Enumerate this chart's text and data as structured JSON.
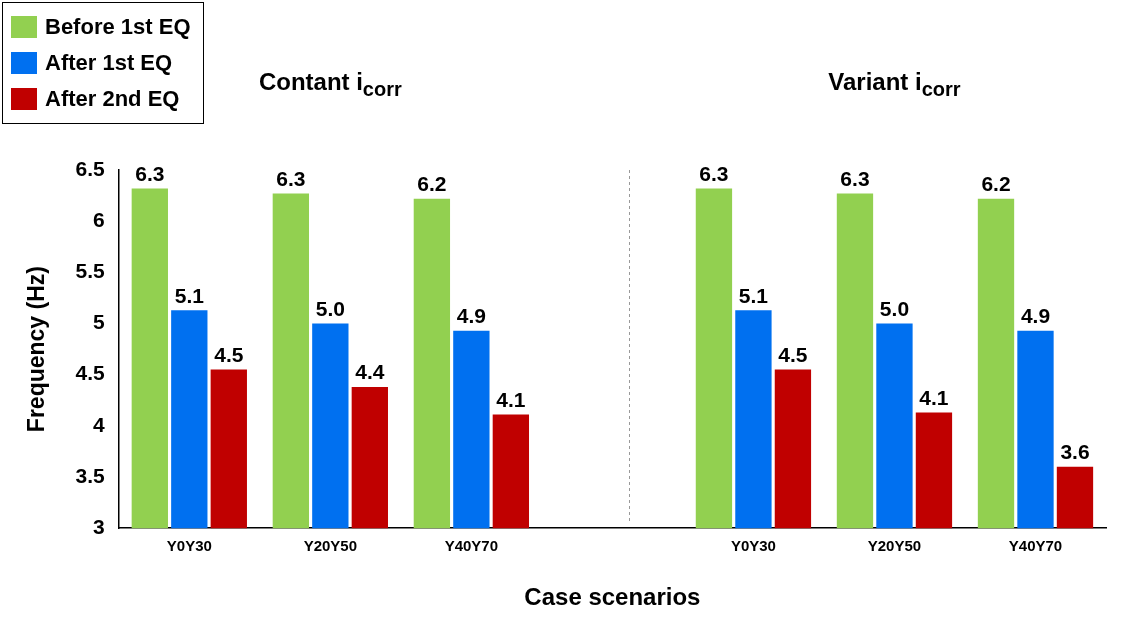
{
  "chart_data": {
    "type": "bar",
    "xlabel": "Case scenarios",
    "ylabel": "Frequency (Hz)",
    "annotations": [
      "Contant i$_{corr}$",
      "Variant i$_{corr}$"
    ],
    "categories": [
      "Y0Y30",
      "Y20Y50",
      "Y40Y70",
      null,
      "Y0Y30",
      "Y20Y50",
      "Y40Y70"
    ],
    "series": [
      {
        "name": "Before 1st EQ",
        "color": "#92d050",
        "values": [
          6.32,
          6.27,
          6.22,
          null,
          6.32,
          6.27,
          6.22
        ],
        "value_labels": [
          "6.3",
          "6.3",
          "6.2",
          null,
          "6.3",
          "6.3",
          "6.2"
        ]
      },
      {
        "name": "After 1st EQ",
        "color": "#0070f0",
        "values": [
          5.13,
          5.0,
          4.93,
          null,
          5.13,
          5.0,
          4.93
        ],
        "value_labels": [
          "5.1",
          "5.0",
          "4.9",
          null,
          "5.1",
          "5.0",
          "4.9"
        ]
      },
      {
        "name": "After 2nd EQ",
        "color": "#c00000",
        "values": [
          4.55,
          4.38,
          4.11,
          null,
          4.55,
          4.13,
          3.6
        ],
        "value_labels": [
          "4.5",
          "4.4",
          "4.1",
          null,
          "4.5",
          "4.1",
          "3.6"
        ]
      }
    ],
    "ylim": [
      3,
      6.5
    ],
    "yticks": [
      3,
      3.5,
      4,
      4.5,
      5,
      5.5,
      6,
      6.5
    ],
    "grid": false,
    "legend": "top left"
  }
}
